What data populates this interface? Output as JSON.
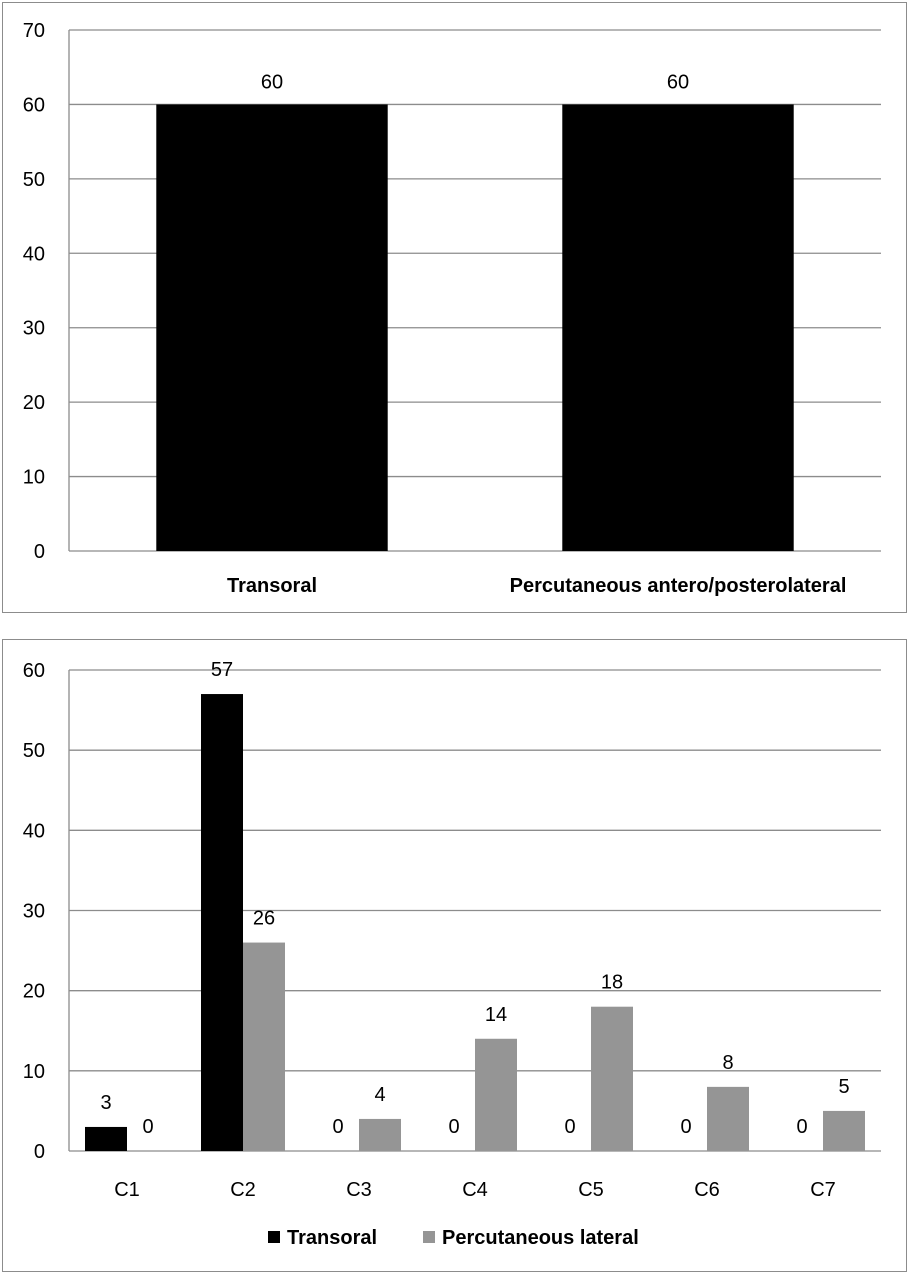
{
  "chart_data": [
    {
      "type": "bar",
      "categories": [
        "Transoral",
        "Percutaneous antero/posterolateral"
      ],
      "values": [
        60,
        60
      ],
      "data_labels": [
        "60",
        "60"
      ],
      "color": "#000000",
      "ylim": [
        0,
        70
      ],
      "yticks": [
        "0",
        "10",
        "20",
        "30",
        "40",
        "50",
        "60",
        "70"
      ],
      "grid": true,
      "legend": "none",
      "category_label_style": "bold"
    },
    {
      "type": "bar",
      "categories": [
        "C1",
        "C2",
        "C3",
        "C4",
        "C5",
        "C6",
        "C7"
      ],
      "series": [
        {
          "name": "Transoral",
          "values": [
            3,
            57,
            0,
            0,
            0,
            0,
            0
          ],
          "color": "#000000"
        },
        {
          "name": "Percutaneous lateral",
          "values": [
            0,
            26,
            4,
            14,
            18,
            8,
            5
          ],
          "color": "#959595"
        }
      ],
      "ylim": [
        0,
        60
      ],
      "yticks": [
        "0",
        "10",
        "20",
        "30",
        "40",
        "50",
        "60"
      ],
      "grid": true,
      "legend": "bottom"
    }
  ]
}
